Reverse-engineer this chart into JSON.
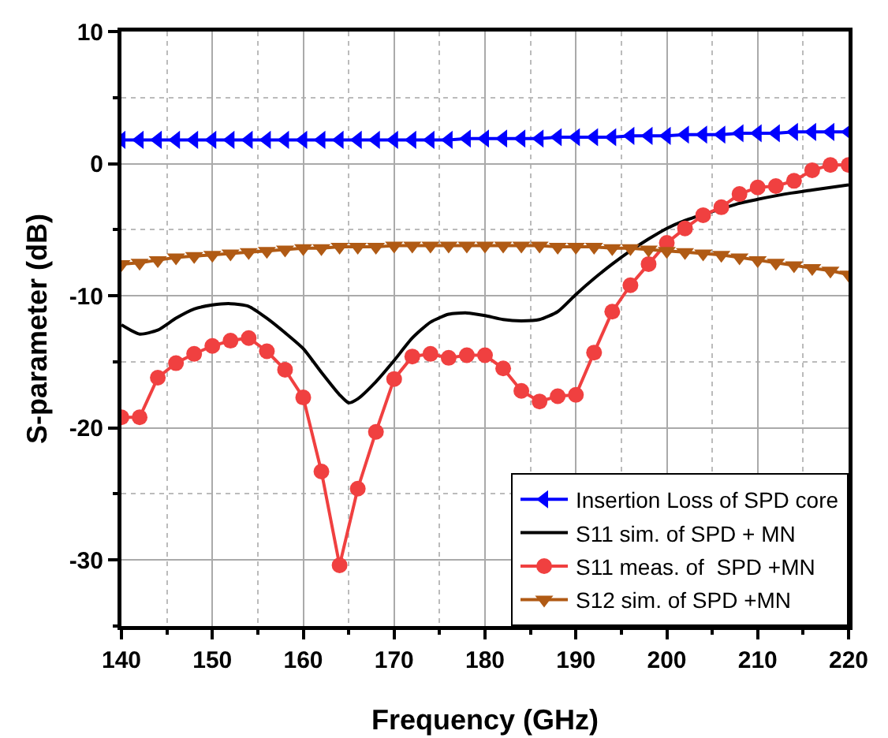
{
  "chart_data": {
    "type": "line",
    "xlabel": "Frequency (GHz)",
    "ylabel": "S-parameter (dB)",
    "xlim": [
      140,
      220
    ],
    "xticks": [
      140,
      150,
      160,
      170,
      180,
      190,
      200,
      210,
      220
    ],
    "ylim": [
      -35,
      10
    ],
    "yticks": [
      -30,
      -20,
      -10,
      0,
      10
    ],
    "grid": true,
    "legend": "bottom right",
    "line_style": "solid",
    "series": [
      {
        "name": "Insertion Loss of SPD core",
        "color": "#0000ff",
        "marker": "triangle-left",
        "x": [
          140,
          142,
          144,
          146,
          148,
          150,
          152,
          154,
          156,
          158,
          160,
          162,
          164,
          166,
          168,
          170,
          172,
          174,
          176,
          178,
          180,
          182,
          184,
          186,
          188,
          190,
          192,
          194,
          196,
          198,
          200,
          202,
          204,
          206,
          208,
          210,
          212,
          214,
          216,
          218,
          220
        ],
        "values": [
          1.8,
          1.8,
          1.8,
          1.8,
          1.8,
          1.8,
          1.8,
          1.8,
          1.8,
          1.8,
          1.8,
          1.8,
          1.8,
          1.8,
          1.8,
          1.8,
          1.8,
          1.8,
          1.8,
          1.9,
          1.9,
          1.9,
          1.9,
          1.9,
          2.0,
          2.0,
          2.0,
          2.0,
          2.1,
          2.1,
          2.1,
          2.2,
          2.2,
          2.2,
          2.3,
          2.3,
          2.3,
          2.4,
          2.4,
          2.4,
          2.4
        ]
      },
      {
        "name": "S11 sim. of SPD + MN",
        "color": "#000000",
        "marker": "none",
        "x": [
          140,
          142,
          144,
          146,
          148,
          150,
          152,
          154,
          156,
          158,
          160,
          162,
          164,
          165,
          166,
          168,
          170,
          172,
          174,
          176,
          178,
          180,
          182,
          184,
          186,
          188,
          190,
          192,
          194,
          196,
          198,
          200,
          202,
          208,
          210,
          213,
          216,
          220
        ],
        "values": [
          -12.2,
          -12.9,
          -12.6,
          -11.7,
          -11.0,
          -10.7,
          -10.6,
          -10.8,
          -11.7,
          -12.8,
          -14.0,
          -15.8,
          -17.5,
          -18.1,
          -17.8,
          -16.5,
          -14.9,
          -13.2,
          -12.0,
          -11.4,
          -11.3,
          -11.5,
          -11.8,
          -11.9,
          -11.8,
          -11.2,
          -9.9,
          -8.7,
          -7.6,
          -6.6,
          -5.7,
          -4.9,
          -4.3,
          -3.0,
          -2.7,
          -2.3,
          -2.0,
          -1.6
        ]
      },
      {
        "name": "S11 meas. of  SPD +MN",
        "color": "#f04040",
        "marker": "circle",
        "x": [
          140,
          142,
          144,
          146,
          148,
          150,
          152,
          154,
          156,
          158,
          160,
          162,
          164,
          166,
          168,
          170,
          172,
          174,
          176,
          178,
          180,
          182,
          184,
          186,
          188,
          190,
          192,
          194,
          196,
          198,
          200,
          202,
          204,
          206,
          208,
          210,
          212,
          214,
          216,
          218,
          220
        ],
        "values": [
          -19.2,
          -19.2,
          -16.2,
          -15.1,
          -14.4,
          -13.8,
          -13.4,
          -13.2,
          -14.2,
          -15.6,
          -17.7,
          -23.3,
          -30.4,
          -24.6,
          -20.3,
          -16.3,
          -14.6,
          -14.4,
          -14.7,
          -14.5,
          -14.5,
          -15.5,
          -17.2,
          -18.0,
          -17.6,
          -17.5,
          -14.3,
          -11.2,
          -9.2,
          -7.6,
          -6.0,
          -4.9,
          -3.9,
          -3.3,
          -2.3,
          -1.8,
          -1.7,
          -1.3,
          -0.5,
          -0.1,
          -0.1
        ]
      },
      {
        "name": "S12 sim. of SPD +MN",
        "color": "#b05a14",
        "marker": "triangle-down",
        "x": [
          140,
          142,
          144,
          146,
          148,
          150,
          152,
          154,
          156,
          158,
          160,
          162,
          164,
          166,
          168,
          170,
          172,
          174,
          176,
          178,
          180,
          182,
          184,
          186,
          188,
          190,
          192,
          194,
          196,
          198,
          200,
          202,
          204,
          206,
          208,
          210,
          212,
          214,
          216,
          218,
          220
        ],
        "values": [
          -7.6,
          -7.5,
          -7.3,
          -7.1,
          -7.0,
          -6.9,
          -6.8,
          -6.7,
          -6.6,
          -6.5,
          -6.4,
          -6.4,
          -6.3,
          -6.3,
          -6.3,
          -6.2,
          -6.2,
          -6.2,
          -6.2,
          -6.2,
          -6.2,
          -6.2,
          -6.2,
          -6.2,
          -6.3,
          -6.3,
          -6.3,
          -6.4,
          -6.4,
          -6.5,
          -6.6,
          -6.7,
          -6.8,
          -6.9,
          -7.1,
          -7.3,
          -7.5,
          -7.7,
          -7.9,
          -8.1,
          -8.4
        ]
      }
    ]
  }
}
